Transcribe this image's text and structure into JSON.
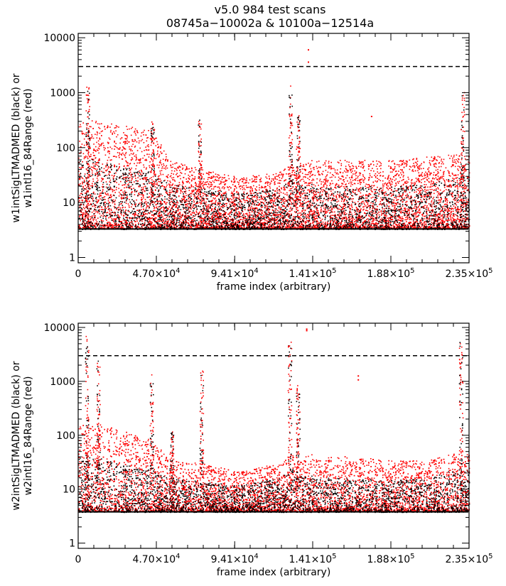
{
  "figure": {
    "title_line1": "v5.0 984 test scans",
    "title_line2": "08745a−10002a & 10100a−12514a"
  },
  "chart_data": [
    {
      "type": "scatter",
      "panel": "top",
      "xlabel": "frame index (arbitrary)",
      "ylabel_line1": "w1intSigLTMADMED (black) or",
      "ylabel_line2": "w1intl16_84Range (red)",
      "xlim": [
        0,
        235000
      ],
      "ylim": [
        0.8,
        12000
      ],
      "yscale": "log",
      "x_ticks": [
        {
          "value": 0,
          "mantissa": "0",
          "exp": ""
        },
        {
          "value": 47000,
          "mantissa": "4.70×10",
          "exp": "4"
        },
        {
          "value": 94100,
          "mantissa": "9.41×10",
          "exp": "4"
        },
        {
          "value": 141000,
          "mantissa": "1.41×10",
          "exp": "5"
        },
        {
          "value": 188000,
          "mantissa": "1.88×10",
          "exp": "5"
        },
        {
          "value": 235000,
          "mantissa": "2.35×10",
          "exp": "5"
        }
      ],
      "y_ticks": [
        {
          "value": 1,
          "label": "1"
        },
        {
          "value": 10,
          "label": "10"
        },
        {
          "value": 100,
          "label": "100"
        },
        {
          "value": 1000,
          "label": "1000"
        },
        {
          "value": 10000,
          "label": "10000"
        }
      ],
      "threshold": 3000,
      "floor": 3.3,
      "series": [
        {
          "role": "black",
          "color": "#000000",
          "envelope_x": [
            0,
            5000,
            20000,
            45000,
            55000,
            75000,
            95000,
            120000,
            128000,
            140000,
            165000,
            190000,
            210000,
            228000,
            235000
          ],
          "envelope_upper": [
            60,
            70,
            55,
            35,
            22,
            18,
            15,
            18,
            28,
            22,
            20,
            20,
            22,
            30,
            28
          ]
        },
        {
          "role": "red",
          "color": "#ff0000",
          "envelope_x": [
            0,
            5000,
            20000,
            45000,
            55000,
            75000,
            95000,
            120000,
            128000,
            140000,
            165000,
            190000,
            210000,
            228000,
            235000
          ],
          "envelope_upper": [
            300,
            320,
            300,
            200,
            60,
            40,
            30,
            35,
            50,
            60,
            60,
            60,
            70,
            80,
            75
          ]
        }
      ],
      "spikes": [
        {
          "x": 5500,
          "peak": 1400
        },
        {
          "x": 44500,
          "peak": 300
        },
        {
          "x": 73000,
          "peak": 330
        },
        {
          "x": 127500,
          "peak": 1400
        },
        {
          "x": 132000,
          "peak": 400
        },
        {
          "x": 231000,
          "peak": 1200
        }
      ],
      "outliers": [
        {
          "x": 138000,
          "y": 6200
        },
        {
          "x": 138000,
          "y": 3700
        },
        {
          "x": 176000,
          "y": 380
        }
      ]
    },
    {
      "type": "scatter",
      "panel": "bottom",
      "xlabel": "frame index (arbitrary)",
      "ylabel_line1": "w2intSigLTMADMED (black) or",
      "ylabel_line2": "w2intl16_84Range (red)",
      "xlim": [
        0,
        235000
      ],
      "ylim": [
        0.8,
        12000
      ],
      "yscale": "log",
      "x_ticks": [
        {
          "value": 0,
          "mantissa": "0",
          "exp": ""
        },
        {
          "value": 47000,
          "mantissa": "4.70×10",
          "exp": "4"
        },
        {
          "value": 94100,
          "mantissa": "9.41×10",
          "exp": "4"
        },
        {
          "value": 141000,
          "mantissa": "1.41×10",
          "exp": "5"
        },
        {
          "value": 188000,
          "mantissa": "1.88×10",
          "exp": "5"
        },
        {
          "value": 235000,
          "mantissa": "2.35×10",
          "exp": "5"
        }
      ],
      "y_ticks": [
        {
          "value": 1,
          "label": "1"
        },
        {
          "value": 10,
          "label": "10"
        },
        {
          "value": 100,
          "label": "100"
        },
        {
          "value": 1000,
          "label": "1000"
        },
        {
          "value": 10000,
          "label": "10000"
        }
      ],
      "threshold": 3000,
      "floor": 3.8,
      "series": [
        {
          "role": "black",
          "color": "#000000",
          "envelope_x": [
            0,
            5000,
            20000,
            45000,
            55000,
            75000,
            95000,
            120000,
            128000,
            140000,
            165000,
            190000,
            210000,
            228000,
            235000
          ],
          "envelope_upper": [
            40,
            45,
            35,
            22,
            16,
            14,
            12,
            16,
            25,
            18,
            16,
            15,
            16,
            25,
            22
          ]
        },
        {
          "role": "red",
          "color": "#ff0000",
          "envelope_x": [
            0,
            5000,
            20000,
            45000,
            55000,
            75000,
            95000,
            120000,
            128000,
            140000,
            165000,
            190000,
            210000,
            228000,
            235000
          ],
          "envelope_upper": [
            160,
            170,
            150,
            80,
            35,
            30,
            22,
            30,
            45,
            45,
            40,
            35,
            35,
            50,
            45
          ]
        }
      ],
      "spikes": [
        {
          "x": 5000,
          "peak": 7000
        },
        {
          "x": 12000,
          "peak": 2500
        },
        {
          "x": 44000,
          "peak": 1400
        },
        {
          "x": 56000,
          "peak": 120
        },
        {
          "x": 74000,
          "peak": 1800
        },
        {
          "x": 127000,
          "peak": 5500
        },
        {
          "x": 132000,
          "peak": 900
        },
        {
          "x": 230000,
          "peak": 6000
        }
      ],
      "outliers": [
        {
          "x": 137000,
          "y": 9000
        },
        {
          "x": 137000,
          "y": 9600
        },
        {
          "x": 168000,
          "y": 1300
        },
        {
          "x": 168000,
          "y": 1100
        }
      ]
    }
  ]
}
